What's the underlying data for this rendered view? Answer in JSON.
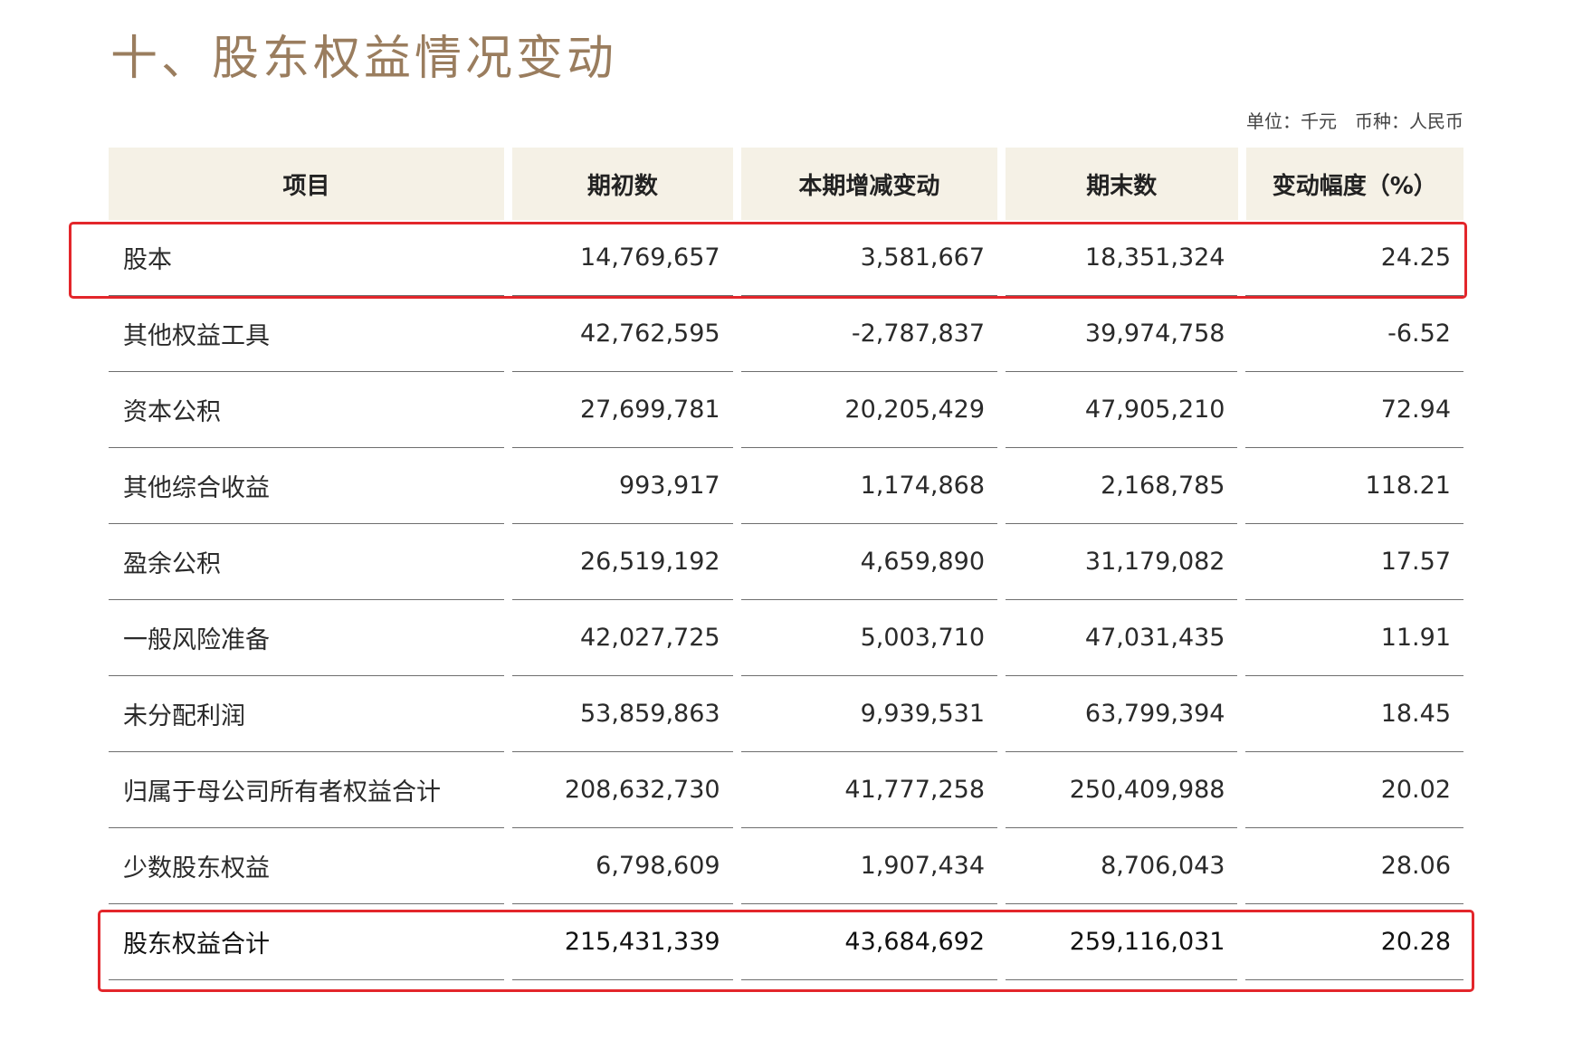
{
  "title": "十、股东权益情况变动",
  "unit": {
    "unit_text": "单位：千元",
    "currency_text": "币种：人民币"
  },
  "table": {
    "headers": [
      "项目",
      "期初数",
      "本期增减变动",
      "期末数",
      "变动幅度（%）"
    ],
    "rows": [
      [
        "股本",
        "14,769,657",
        "3,581,667",
        "18,351,324",
        "24.25"
      ],
      [
        "其他权益工具",
        "42,762,595",
        "-2,787,837",
        "39,974,758",
        "-6.52"
      ],
      [
        "资本公积",
        "27,699,781",
        "20,205,429",
        "47,905,210",
        "72.94"
      ],
      [
        "其他综合收益",
        "993,917",
        "1,174,868",
        "2,168,785",
        "118.21"
      ],
      [
        "盈余公积",
        "26,519,192",
        "4,659,890",
        "31,179,082",
        "17.57"
      ],
      [
        "一般风险准备",
        "42,027,725",
        "5,003,710",
        "47,031,435",
        "11.91"
      ],
      [
        "未分配利润",
        "53,859,863",
        "9,939,531",
        "63,799,394",
        "18.45"
      ],
      [
        "归属于母公司所有者权益合计",
        "208,632,730",
        "41,777,258",
        "250,409,988",
        "20.02"
      ],
      [
        "少数股东权益",
        "6,798,609",
        "1,907,434",
        "8,706,043",
        "28.06"
      ],
      [
        "股东权益合计",
        "215,431,339",
        "43,684,692",
        "259,116,031",
        "20.28"
      ]
    ]
  },
  "colors": {
    "title": "#9a7d5e",
    "header_bg": "#f5f1e6",
    "highlight": "#e3262b"
  }
}
